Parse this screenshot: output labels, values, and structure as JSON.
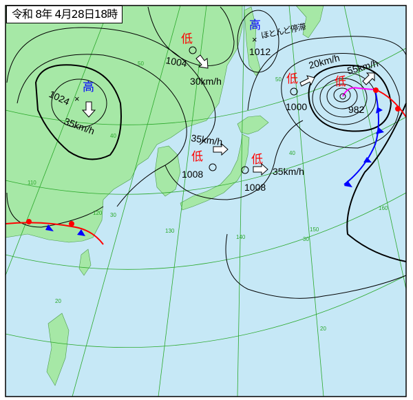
{
  "title": "令和 8年 4月28日18時",
  "colors": {
    "sea": "#c6e8f6",
    "land": "#a6e8a6",
    "grid": "#2aa82a",
    "isobar": "#000000",
    "high": "#0000ff",
    "low": "#ff0000",
    "warm_front": "#ff0000",
    "cold_front": "#0000ff",
    "occluded_front": "#ff00ff"
  },
  "systems": [
    {
      "type_label": "高",
      "kind": "high",
      "pressure": "1024",
      "motion": "35km/h",
      "direction": "S"
    },
    {
      "type_label": "低",
      "kind": "low",
      "pressure": "1004",
      "motion": "30km/h",
      "direction": "SE"
    },
    {
      "type_label": "高",
      "kind": "high",
      "pressure": "1012",
      "motion": "ほとんど停滞"
    },
    {
      "type_label": "低",
      "kind": "low",
      "pressure": "1000",
      "motion": "20km/h",
      "direction": "NE"
    },
    {
      "type_label": "低",
      "kind": "low",
      "pressure": "982",
      "motion": "55km/h",
      "direction": "NE"
    },
    {
      "type_label": "低",
      "kind": "low",
      "pressure": "1008",
      "motion": "35km/h",
      "direction": "E"
    },
    {
      "type_label": "低",
      "kind": "low",
      "pressure": "1008",
      "motion": "35km/h",
      "direction": "E"
    }
  ],
  "grid_labels": {
    "lat": [
      "50",
      "40",
      "30",
      "20",
      "50",
      "40",
      "30",
      "20"
    ],
    "lon": [
      "110",
      "120",
      "130",
      "140",
      "150",
      "160"
    ]
  }
}
